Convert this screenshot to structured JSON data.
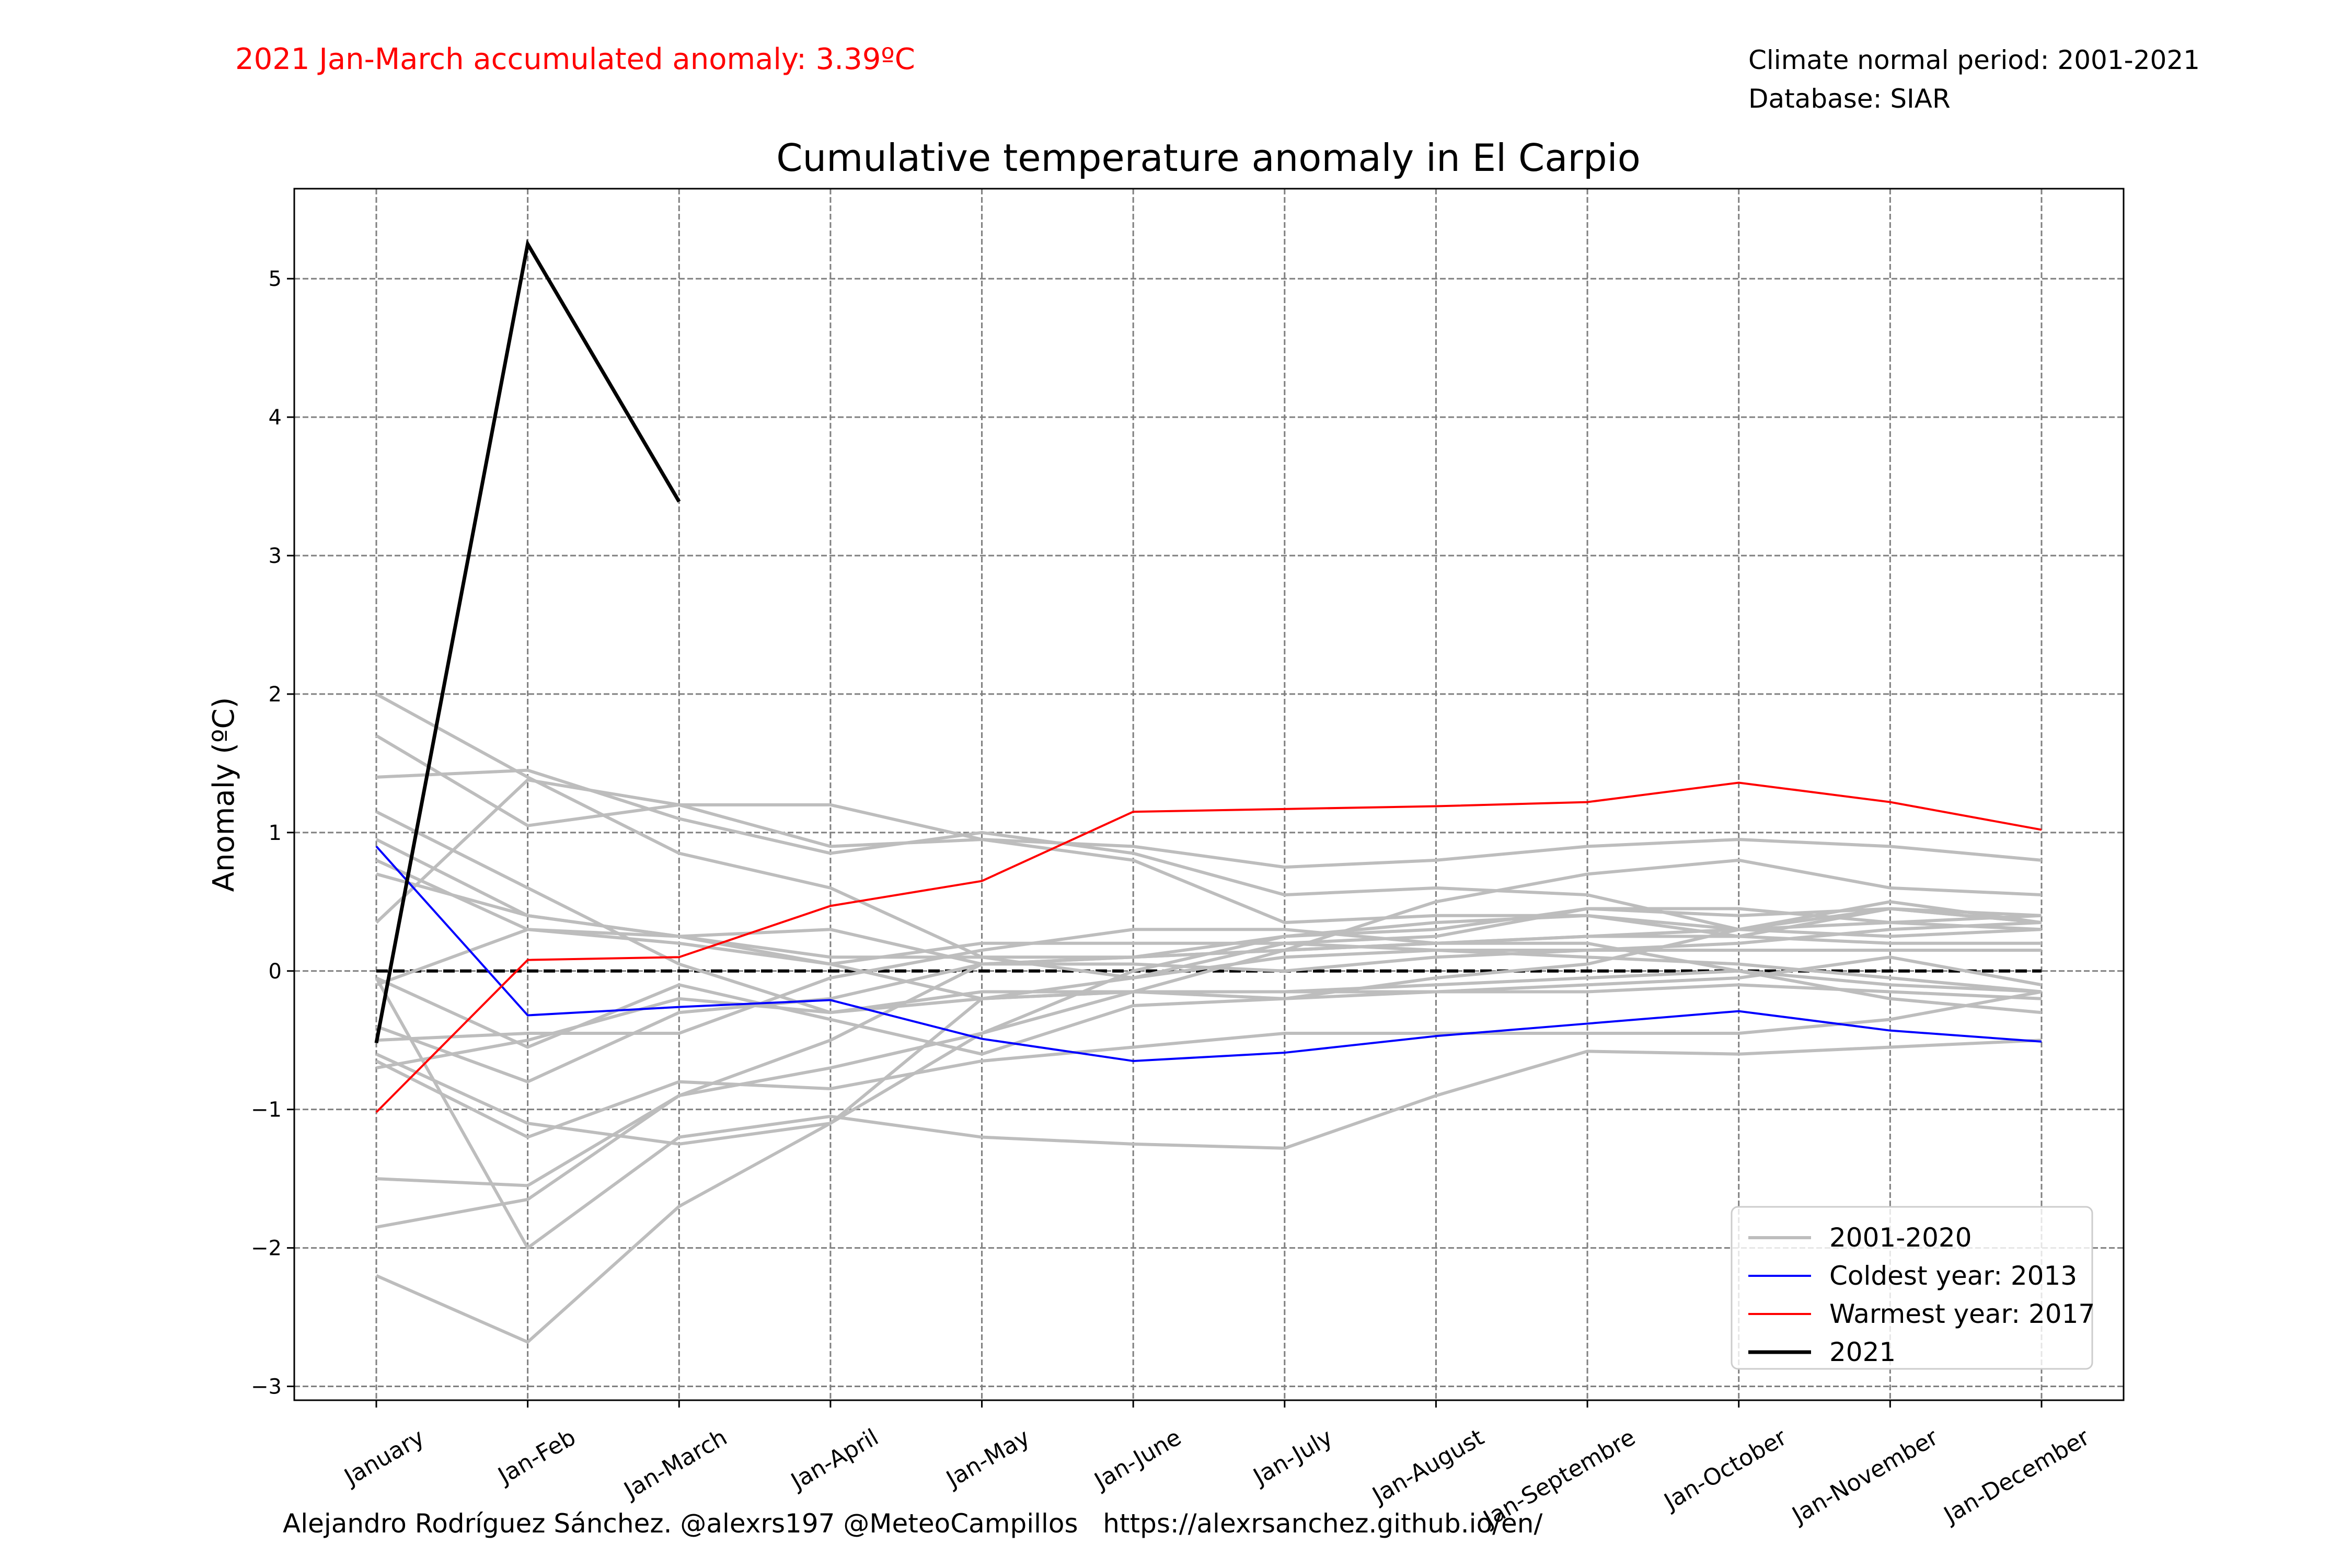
{
  "header": {
    "accumulated_anomaly": "2021 Jan-March accumulated anomaly: 3.39ºC",
    "climate_normal": "Climate normal period: 2001-2021",
    "database": "Database: SIAR"
  },
  "footer": {
    "credits": "Alejandro Rodríguez Sánchez. @alexrs197 @MeteoCampillos   https://alexrsanchez.github.io/en/"
  },
  "colors": {
    "highlight_text": "#ff0000",
    "history_line": "#bdbdbd",
    "coldest_line": "#0000ff",
    "warmest_line": "#ff0000",
    "current_line": "#000000",
    "grid": "#808080"
  },
  "chart_data": {
    "type": "line",
    "title": "Cumulative temperature anomaly in El Carpio",
    "xlabel": "",
    "ylabel": "Anomaly (ºC)",
    "ylim": [
      -3.1,
      5.65
    ],
    "yticks": [
      -3,
      -2,
      -1,
      0,
      1,
      2,
      3,
      4,
      5
    ],
    "grid": true,
    "legend_position": "lower-right",
    "categories": [
      "January",
      "Jan-Feb",
      "Jan-March",
      "Jan-April",
      "Jan-May",
      "Jan-June",
      "Jan-July",
      "Jan-August",
      "Jan-Septembre",
      "Jan-October",
      "Jan-November",
      "Jan-December"
    ],
    "reference_line": 0,
    "legend": [
      {
        "label": "2001-2020",
        "series": "history"
      },
      {
        "label": "Coldest year: 2013",
        "series": "coldest"
      },
      {
        "label": "Warmest year: 2017",
        "series": "warmest"
      },
      {
        "label": "2021",
        "series": "current"
      }
    ],
    "history": [
      [
        2.0,
        1.4,
        0.85,
        0.6,
        0.1,
        -0.05,
        0.2,
        0.25,
        0.45,
        0.4,
        0.45,
        0.35
      ],
      [
        1.7,
        1.05,
        1.2,
        1.2,
        0.95,
        0.9,
        0.75,
        0.8,
        0.9,
        0.95,
        0.9,
        0.8
      ],
      [
        1.4,
        1.45,
        1.1,
        0.85,
        1.0,
        0.85,
        0.55,
        0.6,
        0.55,
        0.3,
        0.25,
        0.3
      ],
      [
        1.15,
        0.6,
        0.05,
        -0.3,
        -0.2,
        -0.15,
        0.15,
        0.5,
        0.7,
        0.8,
        0.6,
        0.55
      ],
      [
        0.95,
        0.4,
        0.25,
        0.3,
        0.05,
        0.1,
        0.25,
        0.3,
        0.45,
        0.45,
        0.35,
        0.4
      ],
      [
        0.8,
        0.3,
        0.2,
        0.05,
        -0.2,
        -0.15,
        -0.2,
        -0.05,
        0.05,
        0.3,
        0.5,
        0.35
      ],
      [
        0.7,
        0.4,
        0.25,
        0.1,
        0.1,
        0.1,
        0.15,
        0.2,
        0.25,
        0.3,
        0.45,
        0.4
      ],
      [
        0.35,
        1.38,
        1.2,
        0.9,
        0.95,
        0.8,
        0.35,
        0.4,
        0.4,
        0.25,
        0.45,
        0.35
      ],
      [
        -0.05,
        -0.55,
        -0.1,
        -0.35,
        -0.6,
        -0.25,
        -0.2,
        -0.15,
        -0.1,
        -0.05,
        0.1,
        -0.1
      ],
      [
        -0.1,
        0.3,
        0.25,
        0.05,
        0.2,
        0.2,
        0.2,
        0.15,
        0.1,
        0.05,
        -0.05,
        -0.15
      ],
      [
        -0.4,
        -0.8,
        -0.3,
        -0.2,
        0.05,
        0.1,
        0.15,
        0.2,
        0.25,
        0.25,
        0.2,
        0.2
      ],
      [
        -0.5,
        -0.45,
        -0.45,
        -0.05,
        0.15,
        0.3,
        0.3,
        0.2,
        0.2,
        0.0,
        -0.2,
        -0.3
      ],
      [
        -0.6,
        -1.1,
        -1.25,
        -1.1,
        -0.45,
        0.0,
        0.25,
        0.35,
        0.4,
        0.3,
        0.35,
        0.3
      ],
      [
        -0.65,
        -1.2,
        -0.8,
        -0.85,
        -0.65,
        -0.55,
        -0.45,
        -0.45,
        -0.45,
        -0.45,
        -0.35,
        -0.15
      ],
      [
        -0.7,
        -0.5,
        -0.2,
        -0.3,
        -0.15,
        -0.15,
        -0.15,
        -0.15,
        -0.15,
        -0.1,
        -0.15,
        -0.2
      ],
      [
        -1.5,
        -1.55,
        -0.9,
        -0.5,
        0.05,
        0.05,
        0.0,
        0.1,
        0.15,
        0.2,
        0.3,
        0.35
      ],
      [
        -1.85,
        -1.65,
        -0.9,
        -0.7,
        -0.45,
        -0.15,
        -0.15,
        -0.1,
        -0.05,
        0.0,
        -0.1,
        -0.15
      ],
      [
        -2.2,
        -2.68,
        -1.7,
        -1.1,
        -0.2,
        -0.05,
        0.1,
        0.15,
        0.15,
        0.15,
        0.15,
        0.15
      ],
      [
        -0.05,
        -2.0,
        -1.2,
        -1.05,
        -1.2,
        -1.25,
        -1.28,
        -0.9,
        -0.58,
        -0.6,
        -0.55,
        -0.5
      ]
    ],
    "coldest": {
      "name": "Coldest year: 2013",
      "values": [
        0.9,
        -0.32,
        -0.26,
        -0.21,
        -0.49,
        -0.65,
        -0.59,
        -0.47,
        -0.38,
        -0.29,
        -0.43,
        -0.51
      ]
    },
    "warmest": {
      "name": "Warmest year: 2017",
      "values": [
        -1.02,
        0.08,
        0.1,
        0.47,
        0.65,
        1.15,
        1.17,
        1.19,
        1.22,
        1.36,
        1.22,
        1.02
      ]
    },
    "current": {
      "name": "2021",
      "values": [
        -0.52,
        5.25,
        3.39
      ]
    }
  }
}
